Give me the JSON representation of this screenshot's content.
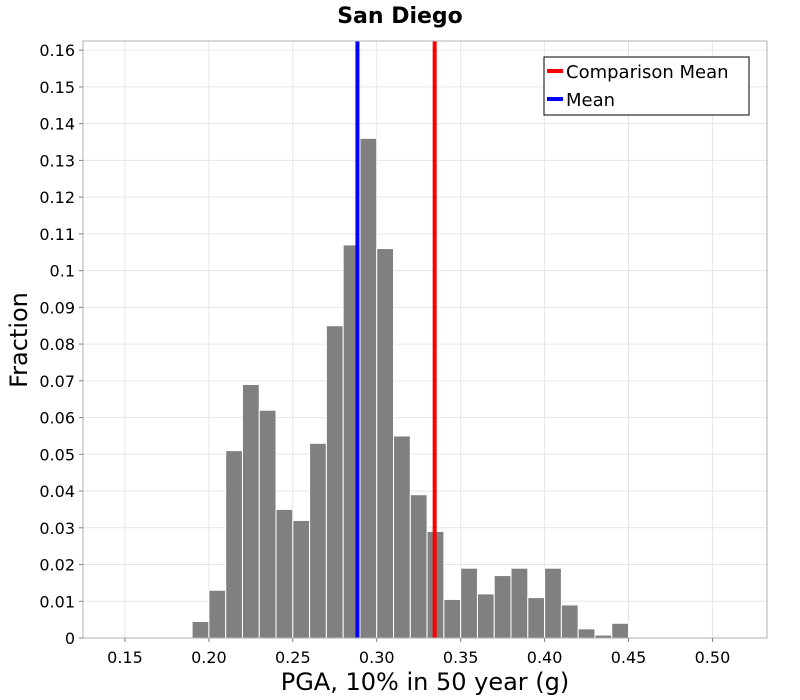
{
  "chart_data": {
    "type": "bar",
    "title": "San Diego",
    "xlabel": "PGA, 10% in 50 year (g)",
    "ylabel": "Fraction",
    "xlim": [
      0.125,
      0.5325
    ],
    "ylim": [
      0,
      0.1625
    ],
    "xticks": [
      0.15,
      0.2,
      0.25,
      0.3,
      0.35,
      0.4,
      0.45,
      0.5
    ],
    "xtick_labels": [
      "0.15",
      "0.20",
      "0.25",
      "0.30",
      "0.35",
      "0.40",
      "0.45",
      "0.50"
    ],
    "yticks": [
      0,
      0.01,
      0.02,
      0.03,
      0.04,
      0.05,
      0.06,
      0.07,
      0.08,
      0.09,
      0.1,
      0.11,
      0.12,
      0.13,
      0.14,
      0.15,
      0.16
    ],
    "ytick_labels": [
      "0",
      "0.01",
      "0.02",
      "0.03",
      "0.04",
      "0.05",
      "0.06",
      "0.07",
      "0.08",
      "0.09",
      "0.1",
      "0.11",
      "0.12",
      "0.13",
      "0.14",
      "0.15",
      "0.16"
    ],
    "bin_width": 0.01,
    "bin_centers": [
      0.195,
      0.205,
      0.215,
      0.225,
      0.235,
      0.245,
      0.255,
      0.265,
      0.275,
      0.285,
      0.295,
      0.305,
      0.315,
      0.325,
      0.335,
      0.345,
      0.355,
      0.365,
      0.375,
      0.385,
      0.395,
      0.405,
      0.415,
      0.425,
      0.435,
      0.445
    ],
    "values": [
      0.0045,
      0.013,
      0.051,
      0.069,
      0.062,
      0.035,
      0.032,
      0.053,
      0.085,
      0.107,
      0.136,
      0.106,
      0.055,
      0.039,
      0.029,
      0.0105,
      0.019,
      0.012,
      0.017,
      0.019,
      0.011,
      0.019,
      0.009,
      0.0025,
      0.0008,
      0.004
    ],
    "vlines": [
      {
        "name": "Comparison Mean",
        "x": 0.3345,
        "color": "#ff0000"
      },
      {
        "name": "Mean",
        "x": 0.2885,
        "color": "#0000ff"
      }
    ],
    "legend_position": "top-right",
    "grid": true,
    "bar_color": "#808080"
  }
}
